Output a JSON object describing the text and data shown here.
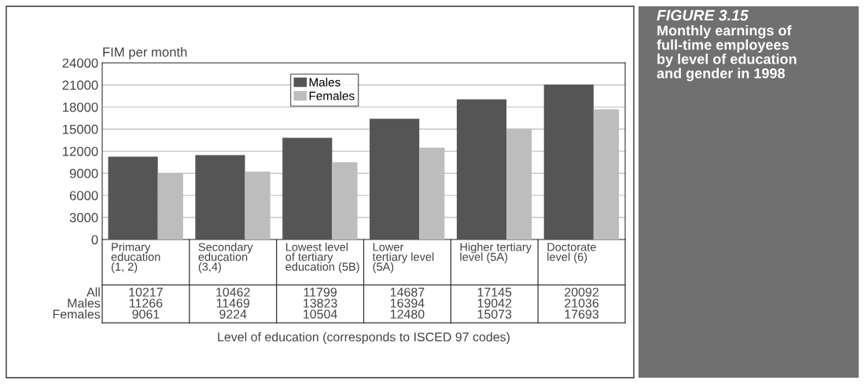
{
  "chart_data": {
    "type": "bar",
    "title": "FIGURE 3.15",
    "subtitle": "Monthly earnings of\nfull-time employees\nby level of education\nand gender in 1998",
    "annotations": [
      "All",
      "10217",
      "10462",
      "11799",
      "14687",
      "17145",
      "20092"
    ],
    "ylabel": "FIM per month",
    "xlabel": "Level of education (corresponds to ISCED 97 codes)",
    "categories": [
      "Primary\neducation\n(1, 2)",
      "Secondary\neducation\n(3,4)",
      "Lowest level\nof tertiary\neducation (5B)",
      "Lower\ntertiary level\n(5A)",
      "Higher tertiary\nlevel (5A)",
      "Doctorate\nlevel (6)"
    ],
    "series": [
      {
        "name": "Males",
        "color": "#555555",
        "values": [
          11266,
          11469,
          13823,
          16394,
          19042,
          21036
        ]
      },
      {
        "name": "Females",
        "color": "#bdbdbd",
        "values": [
          9061,
          9224,
          10504,
          12480,
          15073,
          17693
        ]
      }
    ],
    "ylim": [
      0,
      24000
    ],
    "yticks": [
      0,
      3000,
      6000,
      9000,
      12000,
      15000,
      18000,
      21000,
      24000
    ],
    "grid": "y",
    "legend": "top",
    "data_labels": true
  }
}
